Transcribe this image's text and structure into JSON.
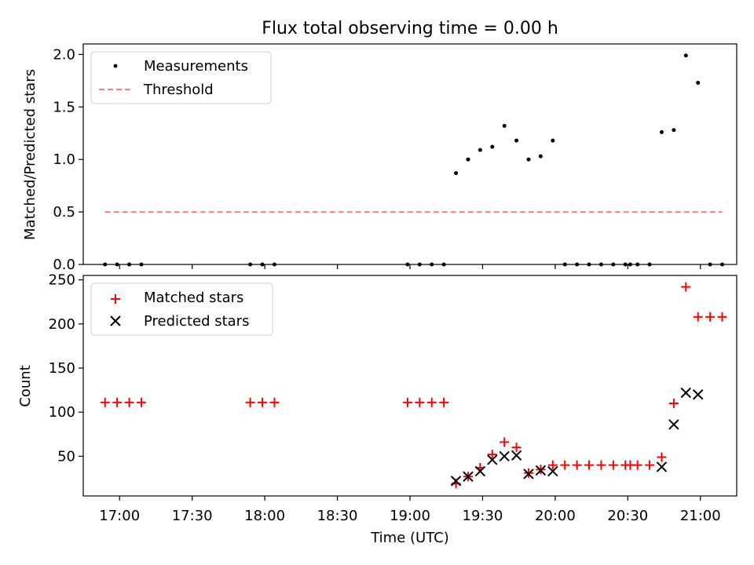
{
  "figure": {
    "title": "Flux total observing time = 0.00 h"
  },
  "chart_data": [
    {
      "type": "scatter",
      "ylabel": "Matched/Predicted stars",
      "xlabel": "",
      "ylim": [
        0,
        2.1
      ],
      "yticks": [
        0.0,
        0.5,
        1.0,
        1.5,
        2.0
      ],
      "ytick_labels": [
        "0.0",
        "0.5",
        "1.0",
        "1.5",
        "2.0"
      ],
      "legend_position": "upper-left",
      "series": [
        {
          "name": "Measurements",
          "marker": "dot",
          "color": "#000000",
          "x": [
            "16:54",
            "16:59",
            "17:04",
            "17:09",
            "17:54",
            "17:59",
            "18:04",
            "18:59",
            "19:04",
            "19:09",
            "19:14",
            "19:19",
            "19:24",
            "19:29",
            "19:34",
            "19:39",
            "19:44",
            "19:49",
            "19:54",
            "19:59",
            "20:04",
            "20:09",
            "20:14",
            "20:19",
            "20:24",
            "20:29",
            "20:31",
            "20:34",
            "20:39",
            "20:44",
            "20:49",
            "20:54",
            "20:59",
            "21:04",
            "21:09"
          ],
          "y": [
            0,
            0,
            0,
            0,
            0,
            0,
            0,
            0,
            0,
            0,
            0,
            0.87,
            1.0,
            1.09,
            1.12,
            1.32,
            1.18,
            1.0,
            1.03,
            1.18,
            0,
            0,
            0,
            0,
            0,
            0,
            0,
            0,
            0,
            1.26,
            1.28,
            1.99,
            1.73,
            0,
            0
          ]
        },
        {
          "name": "Threshold",
          "style": "dashed",
          "color": "#ff7f7f",
          "x": [
            "16:54",
            "21:09"
          ],
          "y": [
            0.5,
            0.5
          ]
        }
      ]
    },
    {
      "type": "scatter",
      "ylabel": "Count",
      "xlabel": "Time (UTC)",
      "ylim": [
        5,
        255
      ],
      "yticks": [
        50,
        100,
        150,
        200,
        250
      ],
      "ytick_labels": [
        "50",
        "100",
        "150",
        "200",
        "250"
      ],
      "xlim": [
        "16:45",
        "21:15"
      ],
      "xticks": [
        "17:00",
        "17:30",
        "18:00",
        "18:30",
        "19:00",
        "19:30",
        "20:00",
        "20:30",
        "21:00"
      ],
      "xtick_labels": [
        "17:00",
        "17:30",
        "18:00",
        "18:30",
        "19:00",
        "19:30",
        "20:00",
        "20:30",
        "21:00"
      ],
      "legend_position": "upper-left",
      "series": [
        {
          "name": "Matched stars",
          "marker": "plus",
          "color": "#ff0000",
          "x": [
            "16:54",
            "16:59",
            "17:04",
            "17:09",
            "17:54",
            "17:59",
            "18:04",
            "18:59",
            "19:04",
            "19:09",
            "19:14",
            "19:19",
            "19:24",
            "19:29",
            "19:34",
            "19:39",
            "19:44",
            "19:49",
            "19:54",
            "19:59",
            "20:04",
            "20:09",
            "20:14",
            "20:19",
            "20:24",
            "20:29",
            "20:31",
            "20:34",
            "20:39",
            "20:44",
            "20:49",
            "20:54",
            "20:59",
            "21:04",
            "21:09"
          ],
          "y": [
            111,
            111,
            111,
            111,
            111,
            111,
            111,
            111,
            111,
            111,
            111,
            19,
            27,
            37,
            52,
            66,
            60,
            31,
            35,
            40,
            40,
            40,
            40,
            40,
            40,
            40,
            40,
            40,
            40,
            49,
            110,
            242,
            208,
            208,
            208
          ]
        },
        {
          "name": "Predicted stars",
          "marker": "x",
          "color": "#000000",
          "x": [
            "19:19",
            "19:24",
            "19:29",
            "19:34",
            "19:39",
            "19:44",
            "19:49",
            "19:54",
            "19:59",
            "20:44",
            "20:49",
            "20:54",
            "20:59"
          ],
          "y": [
            22,
            27,
            33,
            46,
            50,
            51,
            30,
            34,
            33,
            38,
            86,
            122,
            120
          ]
        }
      ]
    }
  ]
}
